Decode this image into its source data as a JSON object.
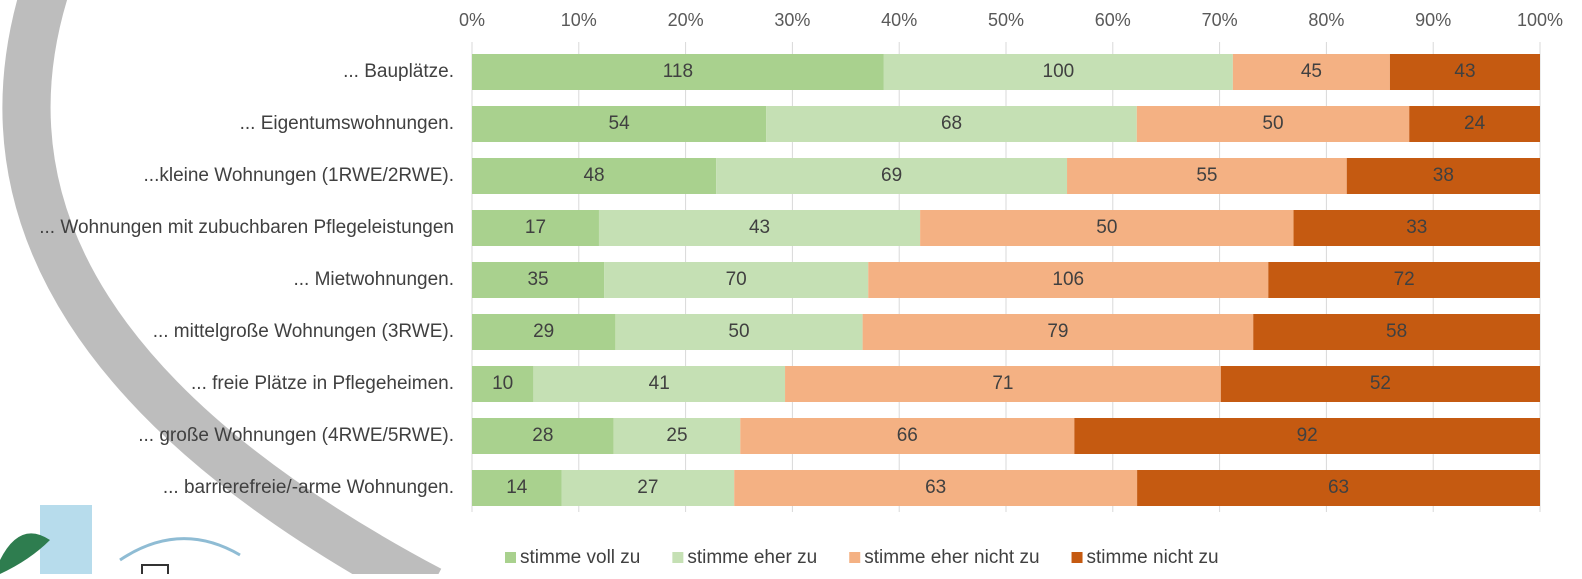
{
  "chart_data": {
    "type": "bar",
    "orientation": "horizontal",
    "stacking": "percent",
    "categories": [
      "... Bauplätze.",
      "... Eigentumswohnungen.",
      "...kleine Wohnungen (1RWE/2RWE).",
      "... Wohnungen mit zubuchbaren Pflegeleistungen",
      "... Mietwohnungen.",
      "... mittelgroße Wohnungen (3RWE).",
      "... freie Plätze in Pflegeheimen.",
      "... große Wohnungen (4RWE/5RWE).",
      "... barrierefreie/-arme Wohnungen."
    ],
    "series": [
      {
        "name": "stimme voll zu",
        "color": "#a9d18e",
        "values": [
          118,
          54,
          48,
          17,
          35,
          29,
          10,
          28,
          14
        ]
      },
      {
        "name": "stimme eher zu",
        "color": "#c5e0b4",
        "values": [
          100,
          68,
          69,
          43,
          70,
          50,
          41,
          25,
          27
        ]
      },
      {
        "name": "stimme eher nicht zu",
        "color": "#f4b183",
        "values": [
          45,
          50,
          55,
          50,
          106,
          79,
          71,
          66,
          63
        ]
      },
      {
        "name": "stimme nicht zu",
        "color": "#c55a11",
        "values": [
          43,
          24,
          38,
          33,
          72,
          58,
          52,
          92,
          63
        ]
      }
    ],
    "xlim": [
      0,
      100
    ],
    "xticks": [
      {
        "value": 0,
        "label": "0%"
      },
      {
        "value": 10,
        "label": "10%"
      },
      {
        "value": 20,
        "label": "20%"
      },
      {
        "value": 30,
        "label": "30%"
      },
      {
        "value": 40,
        "label": "40%"
      },
      {
        "value": 50,
        "label": "50%"
      },
      {
        "value": 60,
        "label": "60%"
      },
      {
        "value": 70,
        "label": "70%"
      },
      {
        "value": 80,
        "label": "80%"
      },
      {
        "value": 90,
        "label": "90%"
      },
      {
        "value": 100,
        "label": "100%"
      }
    ],
    "grid": true,
    "legend": "bottom"
  }
}
